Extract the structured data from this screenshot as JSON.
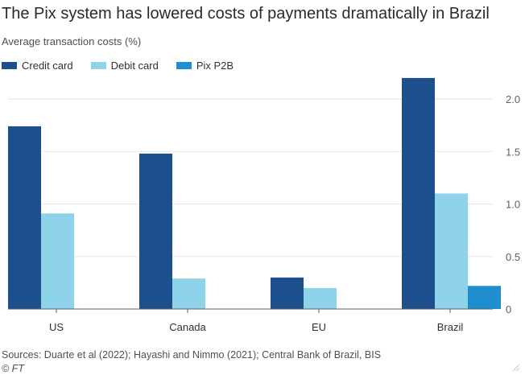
{
  "chart_data": {
    "type": "bar",
    "title": "The Pix system has lowered costs of payments dramatically in Brazil",
    "subtitle": "Average transaction costs (%)",
    "categories": [
      "US",
      "Canada",
      "EU",
      "Brazil"
    ],
    "series": [
      {
        "name": "Credit card",
        "color": "#1d4f8c",
        "values": [
          1.74,
          1.48,
          0.3,
          2.2
        ]
      },
      {
        "name": "Debit card",
        "color": "#8fd3ea",
        "values": [
          0.91,
          0.29,
          0.2,
          1.1
        ]
      },
      {
        "name": "Pix P2B",
        "color": "#1e8ecf",
        "values": [
          null,
          null,
          null,
          0.22
        ]
      }
    ],
    "yticks": [
      0,
      0.5,
      1.0,
      1.5,
      2.0
    ],
    "ytick_labels": [
      "0",
      "0.5",
      "1.0",
      "1.5",
      "2.0"
    ],
    "ylim": [
      0,
      2.2
    ],
    "grid": true,
    "y_axis_side": "right",
    "legend_position": "top-left"
  },
  "footer": {
    "source": "Sources: Duarte et al (2022); Hayashi and Nimmo (2021); Central Bank of Brazil, BIS",
    "credit": "© FT"
  }
}
